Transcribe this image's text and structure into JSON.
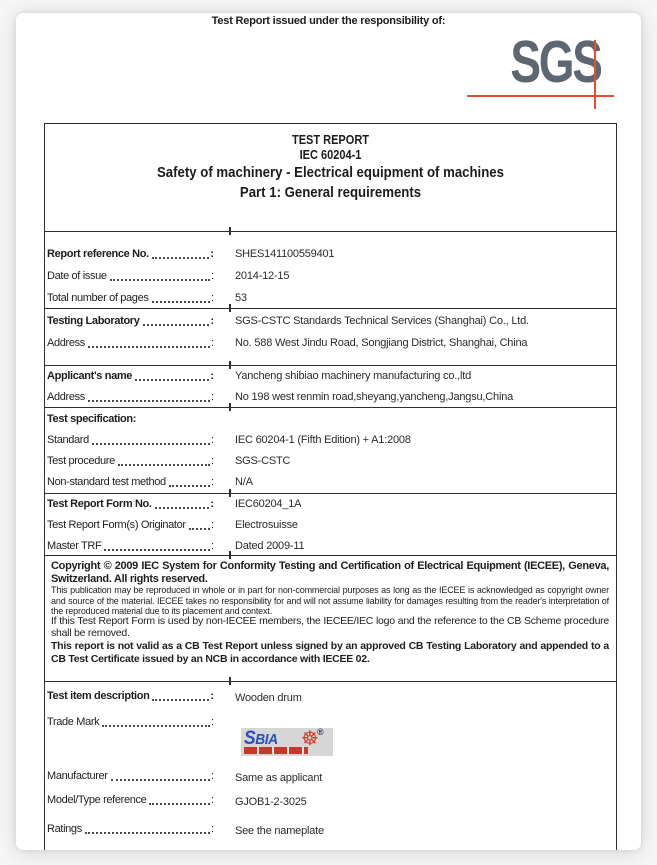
{
  "colors": {
    "sgs_logo_gray": "#5c6771",
    "sgs_accent_orange": "#e0522e",
    "trademark_blue": "#2b50b4",
    "trademark_red": "#c4392b",
    "border_black": "#2f2f2f"
  },
  "header": {
    "issued_note": "Test Report issued under the responsibility of:",
    "logo_text": "SGS"
  },
  "glyphs": {
    "colon": ":",
    "registered": "®"
  },
  "icons": {
    "wheel": "☸"
  },
  "title_block": {
    "l1": "TEST REPORT",
    "l2": "IEC 60204-1",
    "l3": "Safety of machinery - Electrical equipment of machines",
    "l4": "Part 1: General requirements"
  },
  "fields": {
    "report_reference_no": {
      "label": "Report reference No.",
      "value": "SHES141100559401"
    },
    "date_of_issue": {
      "label": "Date of issue",
      "value": "2014-12-15"
    },
    "total_pages": {
      "label": "Total number of pages",
      "value": "53"
    },
    "testing_laboratory": {
      "label": "Testing Laboratory",
      "value": "SGS-CSTC Standards Technical Services (Shanghai) Co., Ltd."
    },
    "lab_address": {
      "label": "Address",
      "value": "No. 588 West Jindu Road, Songjiang District, Shanghai, China"
    },
    "applicant_name": {
      "label": "Applicant's name",
      "value": "Yancheng shibiao machinery manufacturing co.,ltd"
    },
    "applicant_address": {
      "label": "Address",
      "value": "No 198 west renmin road,sheyang,yancheng,Jangsu,China"
    },
    "test_specification": {
      "label": "Test specification:"
    },
    "standard": {
      "label": "Standard",
      "value": "IEC 60204-1 (Fifth Edition) + A1:2008"
    },
    "test_procedure": {
      "label": "Test procedure",
      "value": "SGS-CSTC"
    },
    "non_standard_method": {
      "label": "Non-standard test method",
      "value": "N/A"
    },
    "trf_no": {
      "label": "Test Report Form No.",
      "value": "IEC60204_1A"
    },
    "trf_originator": {
      "label": "Test Report Form(s) Originator",
      "value": "Electrosuisse"
    },
    "master_trf": {
      "label": "Master TRF",
      "value": "Dated 2009-11"
    },
    "test_item_description": {
      "label": "Test item description",
      "value": "Wooden drum"
    },
    "trade_mark": {
      "label": "Trade Mark",
      "logo_text": "SBIA"
    },
    "manufacturer": {
      "label": "Manufacturer",
      "value": "Same as applicant"
    },
    "model_type": {
      "label": "Model/Type reference",
      "value": "GJOB1-2-3025"
    },
    "ratings": {
      "label": "Ratings",
      "value": "See the nameplate"
    }
  },
  "copyright": {
    "heading": "Copyright © 2009 IEC System for Conformity Testing and Certification of Electrical Equipment (IECEE), Geneva, Switzerland. All rights reserved.",
    "small_print": "This publication may be reproduced in whole or in part for non-commercial purposes as long as the IECEE is acknowledged as copyright owner and source of the material. IECEE takes no responsibility for and will not assume liability for damages resulting from the reader's interpretation of the reproduced material due to its placement and context.",
    "body": "If this Test Report Form is used by non-IECEE members, the IECEE/IEC logo and the reference to the CB Scheme procedure shall be removed.",
    "notice": "This report is not valid as a CB Test Report unless signed by an approved CB Testing Laboratory and appended to a CB Test Certificate issued by an NCB in accordance with IECEE 02."
  }
}
